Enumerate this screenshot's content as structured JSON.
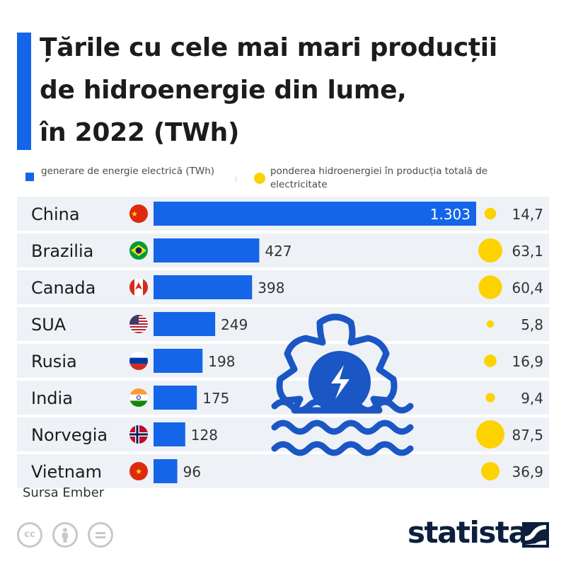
{
  "header": {
    "title_lines": [
      "Țările cu cele mai mari producții",
      "de hidroenergie din lume,",
      "în 2022 (TWh)"
    ]
  },
  "legend": {
    "bars_label": "generare de energie electrică (TWh)",
    "dots_label": "ponderea hidroenergiei în producția totală de electricitate"
  },
  "colors": {
    "accent": "#1565e8",
    "bar": "#1565e8",
    "dot": "#fcd300",
    "row_band": "#eef1f6",
    "icon_navy": "#1a56c4",
    "brand": "#0d1f3c"
  },
  "chart_data": {
    "type": "bar",
    "orientation": "horizontal",
    "title": "Țările cu cele mai mari producții de hidroenergie din lume, în 2022 (TWh)",
    "categories": [
      "China",
      "Brazilia",
      "Canada",
      "SUA",
      "Rusia",
      "India",
      "Norvegia",
      "Vietnam"
    ],
    "flags": [
      "china-flag",
      "brazil-flag",
      "canada-flag",
      "usa-flag",
      "russia-flag",
      "india-flag",
      "norway-flag",
      "vietnam-flag"
    ],
    "series": [
      {
        "name": "generare de energie electrică (TWh)",
        "mark": "bar",
        "values": [
          1303,
          427,
          398,
          249,
          198,
          175,
          128,
          96
        ],
        "labels": [
          "1.303",
          "427",
          "398",
          "249",
          "198",
          "175",
          "128",
          "96"
        ]
      },
      {
        "name": "ponderea hidroenergiei în producția totală de electricitate",
        "mark": "bubble",
        "values": [
          14.7,
          63.1,
          60.4,
          5.8,
          16.9,
          9.4,
          87.5,
          36.9
        ],
        "labels": [
          "14,7",
          "63,1",
          "60,4",
          "5,8",
          "16,9",
          "9,4",
          "87,5",
          "36,9"
        ]
      }
    ],
    "xlim": [
      0,
      1303
    ]
  },
  "footer": {
    "source": "Sursa Ember",
    "brand": "statista",
    "license_icons": [
      "cc-icon",
      "attribution-icon",
      "no-derivatives-icon"
    ]
  }
}
